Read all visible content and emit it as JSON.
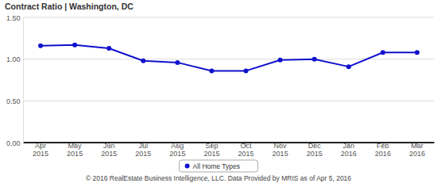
{
  "chart_data": {
    "type": "line",
    "title": "Contract Ratio | Washington, DC",
    "categories": [
      "Apr 2015",
      "May 2015",
      "Jun 2015",
      "Jul 2015",
      "Aug 2015",
      "Sep 2015",
      "Oct 2015",
      "Nov 2015",
      "Dec 2015",
      "Jan 2016",
      "Feb 2016",
      "Mar 2016"
    ],
    "series": [
      {
        "name": "All Home Types",
        "color": "#1111cc",
        "marker": "circle",
        "line_style": "solid",
        "values": [
          1.16,
          1.17,
          1.13,
          0.98,
          0.96,
          0.86,
          0.86,
          0.99,
          1.0,
          0.91,
          1.08,
          1.08
        ]
      }
    ],
    "ylim": [
      0,
      1.5
    ],
    "yticks": [
      {
        "value": 0,
        "label": "0.00"
      },
      {
        "value": 0.5,
        "label": "0.50"
      },
      {
        "value": 1,
        "label": "1.00"
      },
      {
        "value": 1.5,
        "label": "1.50"
      }
    ],
    "grid": true,
    "legend": "bottom",
    "source": "© 2016 RealEstate Business Intelligence, LLC. Data Provided by MRIS as of Apr 5, 2016"
  }
}
